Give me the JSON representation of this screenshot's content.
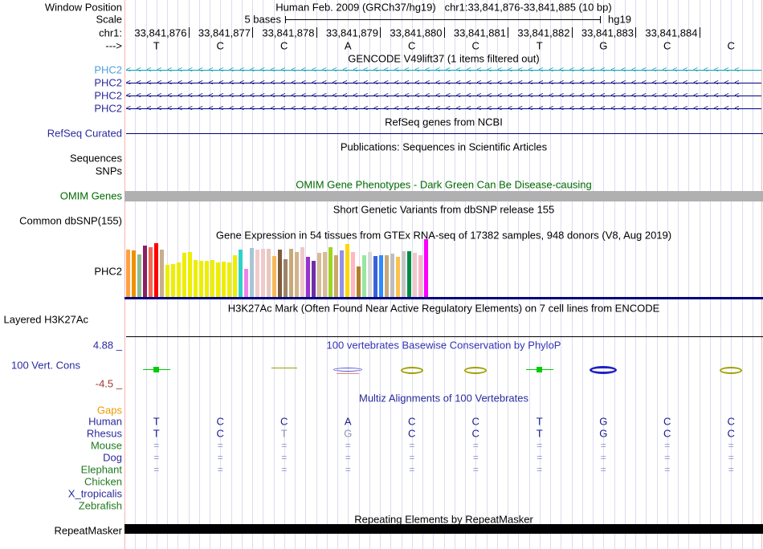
{
  "colors": {
    "navy_line": "#000080",
    "navy_label": "#2A2A9E",
    "gencode_item1_label": "#4D9FDB",
    "gencode_item1_line": "#0AA0B4",
    "green_label": "#1F7A1F",
    "omim_green": "#006B00",
    "orange_label": "#EE9800",
    "dark_red_label": "#99392C",
    "omim_bar_gray": "#B0B0B0",
    "repeat_bar_black": "#000000",
    "grid": "#DCDCEF",
    "edge_pink": "#F5B4B4",
    "cons_green": "#00CC00",
    "cons_olive": "#A0A000",
    "cons_blue": "#2020C8",
    "cons_red": "#F08080"
  },
  "header": {
    "window_position_label": "Window Position",
    "title": "Human Feb. 2009 (GRCh37/hg19)",
    "range": "chr1:33,841,876-33,841,885 (10 bp)",
    "scale_row_label": "Scale",
    "scale_value": "5 bases",
    "assembly": "hg19",
    "chrom_label": "chr1:",
    "strand_label": "--->",
    "ruler_numbers": [
      "33,841,876",
      "33,841,877",
      "33,841,878",
      "33,841,879",
      "33,841,880",
      "33,841,881",
      "33,841,882",
      "33,841,883",
      "33,841,884"
    ],
    "bases": [
      "T",
      "C",
      "C",
      "A",
      "C",
      "C",
      "T",
      "G",
      "C",
      "C"
    ]
  },
  "tracks": {
    "gencode": {
      "title": "GENCODE V49lift37 (1 items filtered out)",
      "genes": [
        "PHC2",
        "PHC2",
        "PHC2",
        "PHC2"
      ]
    },
    "refseq": {
      "title": "RefSeq genes from NCBI",
      "label": "RefSeq Curated"
    },
    "publications": {
      "title": "Publications: Sequences in Scientific Articles",
      "sequences_label": "Sequences",
      "snps_label": "SNPs"
    },
    "omim": {
      "title": "OMIM Gene Phenotypes - Dark Green Can Be Disease-causing",
      "label": "OMIM Genes"
    },
    "dbsnp": {
      "title": "Short Genetic Variants from dbSNP release 155",
      "label": "Common dbSNP(155)"
    },
    "gtex": {
      "title": "Gene Expression in 54 tissues from GTEx RNA-seq of 17382 samples, 948 donors (V8, Aug 2019)",
      "label": "PHC2"
    },
    "h3k27ac": {
      "title": "H3K27Ac Mark (Often Found Near Active Regulatory Elements) on 7 cell lines from ENCODE",
      "label": "Layered H3K27Ac"
    },
    "conservation": {
      "title": "100 vertebrates Basewise Conservation by PhyloP",
      "label": "100 Vert. Cons",
      "max_label": "4.88 _",
      "min_label": "-4.5 _",
      "marks": [
        {
          "col": 0,
          "base": "T",
          "style": "T"
        },
        {
          "col": 2,
          "base": "C",
          "style": "low"
        },
        {
          "col": 3,
          "base": "A",
          "style": "A"
        },
        {
          "col": 4,
          "base": "C",
          "style": "C"
        },
        {
          "col": 5,
          "base": "C",
          "style": "C"
        },
        {
          "col": 6,
          "base": "T",
          "style": "T"
        },
        {
          "col": 7,
          "base": "G",
          "style": "G"
        },
        {
          "col": 9,
          "base": "C",
          "style": "C"
        }
      ]
    },
    "multiz": {
      "title": "Multiz Alignments of 100 Vertebrates",
      "gaps_label": "Gaps",
      "species": [
        {
          "name": "Human",
          "name_color": "navy",
          "row": "bases",
          "cells": [
            "T",
            "C",
            "C",
            "A",
            "C",
            "C",
            "T",
            "G",
            "C",
            "C"
          ],
          "dim_cols": []
        },
        {
          "name": "Rhesus",
          "name_color": "navy",
          "row": "bases",
          "cells": [
            "T",
            "C",
            "T",
            "G",
            "C",
            "C",
            "T",
            "G",
            "C",
            "C"
          ],
          "dim_cols": [
            2,
            3
          ]
        },
        {
          "name": "Mouse",
          "name_color": "green",
          "row": "eq"
        },
        {
          "name": "Dog",
          "name_color": "navy",
          "row": "eq"
        },
        {
          "name": "Elephant",
          "name_color": "green",
          "row": "eq"
        },
        {
          "name": "Chicken",
          "name_color": "green",
          "row": "none"
        },
        {
          "name": "X_tropicalis",
          "name_color": "navy",
          "row": "none"
        },
        {
          "name": "Zebrafish",
          "name_color": "green",
          "row": "none"
        }
      ]
    },
    "repeatmasker": {
      "title": "Repeating Elements by RepeatMasker",
      "label": "RepeatMasker"
    }
  },
  "chart_data": {
    "type": "bar",
    "title": "Gene Expression in 54 tissues from GTEx RNA-seq of 17382 samples, 948 donors (V8, Aug 2019)",
    "gene": "PHC2",
    "ylabel": "relative expression (no numeric axis shown; values are bar heights in screen px)",
    "legend_position": "none",
    "bars": [
      {
        "c": "#FFA040",
        "v": 60
      },
      {
        "c": "#F09000",
        "v": 59
      },
      {
        "c": "#8FBC8F",
        "v": 54
      },
      {
        "c": "#8B2063",
        "v": 65
      },
      {
        "c": "#F06A55",
        "v": 63
      },
      {
        "c": "#FF0000",
        "v": 68
      },
      {
        "c": "#C8AE8C",
        "v": 60
      },
      {
        "c": "#EEEE00",
        "v": 41
      },
      {
        "c": "#EEEE00",
        "v": 42
      },
      {
        "c": "#EEEE00",
        "v": 44
      },
      {
        "c": "#EEEE00",
        "v": 56
      },
      {
        "c": "#EEEE00",
        "v": 57
      },
      {
        "c": "#EEEE00",
        "v": 47
      },
      {
        "c": "#EEEE00",
        "v": 46
      },
      {
        "c": "#EEEE00",
        "v": 46
      },
      {
        "c": "#EEEE00",
        "v": 47
      },
      {
        "c": "#EEEE00",
        "v": 44
      },
      {
        "c": "#EEEE00",
        "v": 45
      },
      {
        "c": "#EEEE00",
        "v": 44
      },
      {
        "c": "#EEEE00",
        "v": 53
      },
      {
        "c": "#2ED3C7",
        "v": 60
      },
      {
        "c": "#EE82EE",
        "v": 36
      },
      {
        "c": "#A8C4D8",
        "v": 62
      },
      {
        "c": "#F2CACA",
        "v": 60
      },
      {
        "c": "#F0CACA",
        "v": 61
      },
      {
        "c": "#E6C8BE",
        "v": 61
      },
      {
        "c": "#F5B95A",
        "v": 52
      },
      {
        "c": "#7D5C3C",
        "v": 60
      },
      {
        "c": "#9C8468",
        "v": 48
      },
      {
        "c": "#C8A878",
        "v": 61
      },
      {
        "c": "#D2B48C",
        "v": 57
      },
      {
        "c": "#EFC9C9",
        "v": 63
      },
      {
        "c": "#9933CC",
        "v": 51
      },
      {
        "c": "#6F2DA8",
        "v": 46
      },
      {
        "c": "#D7BC96",
        "v": 56
      },
      {
        "c": "#D7BC96",
        "v": 57
      },
      {
        "c": "#9FD420",
        "v": 63
      },
      {
        "c": "#C9A96B",
        "v": 53
      },
      {
        "c": "#9390E8",
        "v": 59
      },
      {
        "c": "#FFD700",
        "v": 67
      },
      {
        "c": "#FFB6C1",
        "v": 57
      },
      {
        "c": "#B08028",
        "v": 39
      },
      {
        "c": "#98E6A0",
        "v": 53
      },
      {
        "c": "#D9D9D9",
        "v": 57
      },
      {
        "c": "#3A62D8",
        "v": 52
      },
      {
        "c": "#2E8BFF",
        "v": 53
      },
      {
        "c": "#C8A878",
        "v": 53
      },
      {
        "c": "#BEBEBE",
        "v": 55
      },
      {
        "c": "#FFC04D",
        "v": 51
      },
      {
        "c": "#C6C6C6",
        "v": 58
      },
      {
        "c": "#008B45",
        "v": 58
      },
      {
        "c": "#EFC9C9",
        "v": 56
      },
      {
        "c": "#F4B8C8",
        "v": 53
      },
      {
        "c": "#FF00FF",
        "v": 73
      }
    ]
  }
}
